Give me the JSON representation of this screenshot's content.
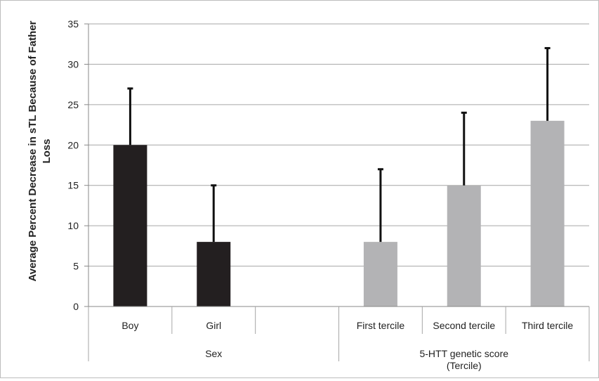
{
  "chart_data": {
    "type": "bar",
    "ylabel": "Average Percent Decrease in sTL Because of Father Loss",
    "ylim": [
      0,
      35
    ],
    "yticks": [
      0,
      5,
      10,
      15,
      20,
      25,
      30,
      35
    ],
    "grid": true,
    "categories": [
      "Boy",
      "Girl",
      "",
      "First tercile",
      "Second tercile",
      "Third tercile"
    ],
    "groups": [
      {
        "label": "Sex",
        "categories": [
          "Boy",
          "Girl",
          ""
        ]
      },
      {
        "label": "5-HTT genetic score\n(Tercile)",
        "categories": [
          "First tercile",
          "Second tercile",
          "Third tercile"
        ]
      }
    ],
    "values": [
      20,
      8,
      null,
      8,
      15,
      23
    ],
    "error_upper": [
      27,
      15,
      null,
      17,
      24,
      32
    ],
    "bar_colors": [
      "#231f20",
      "#231f20",
      null,
      "#b3b3b5",
      "#b3b3b5",
      "#b3b3b5"
    ]
  }
}
